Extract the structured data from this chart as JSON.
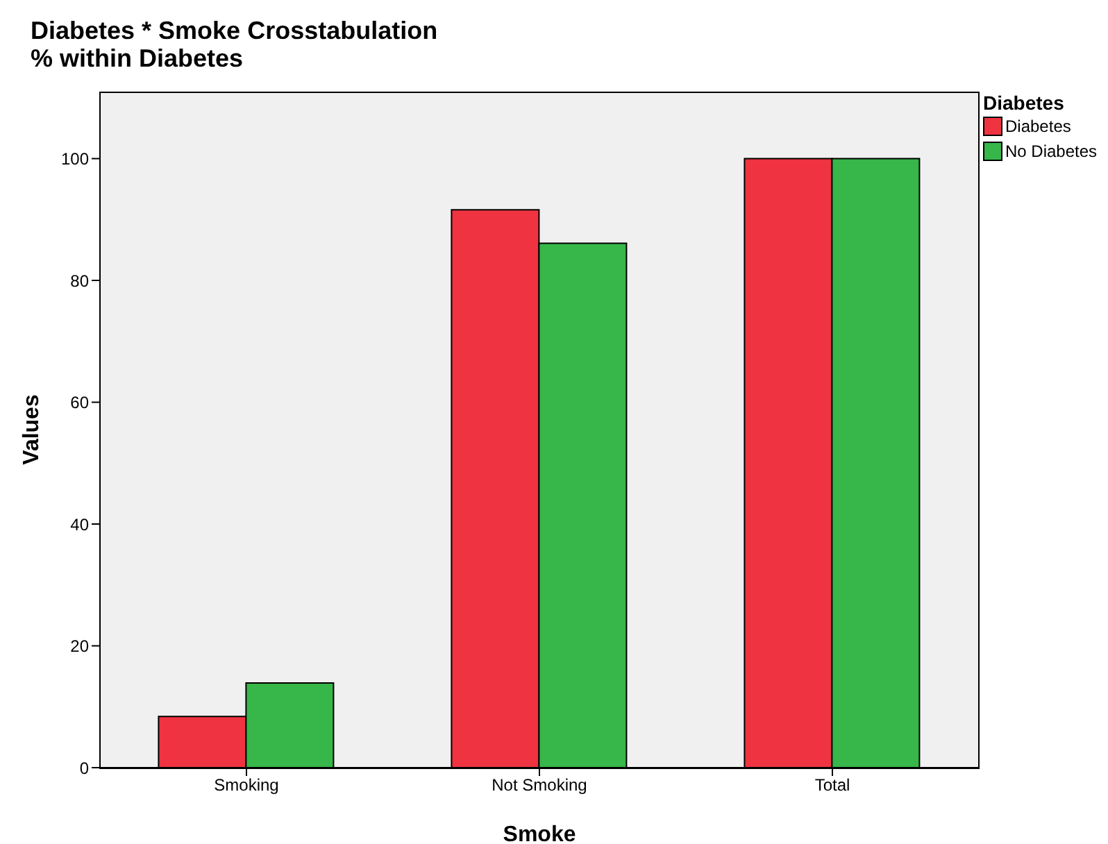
{
  "chart_data": {
    "type": "bar",
    "title": "Diabetes * Smoke Crosstabulation\n% within Diabetes",
    "xlabel": "Smoke",
    "ylabel": "Values",
    "legend_title": "Diabetes",
    "categories": [
      "Smoking",
      "Not Smoking",
      "Total"
    ],
    "series": [
      {
        "name": "Diabetes",
        "color": "#ef3340",
        "values": [
          8.4,
          91.6,
          100
        ]
      },
      {
        "name": "No Diabetes",
        "color": "#37b64a",
        "values": [
          13.9,
          86.1,
          100
        ]
      }
    ],
    "ylim": [
      0,
      111
    ],
    "yticks": [
      0,
      20,
      40,
      60,
      80,
      100
    ],
    "grid": false,
    "legend": "top right"
  }
}
